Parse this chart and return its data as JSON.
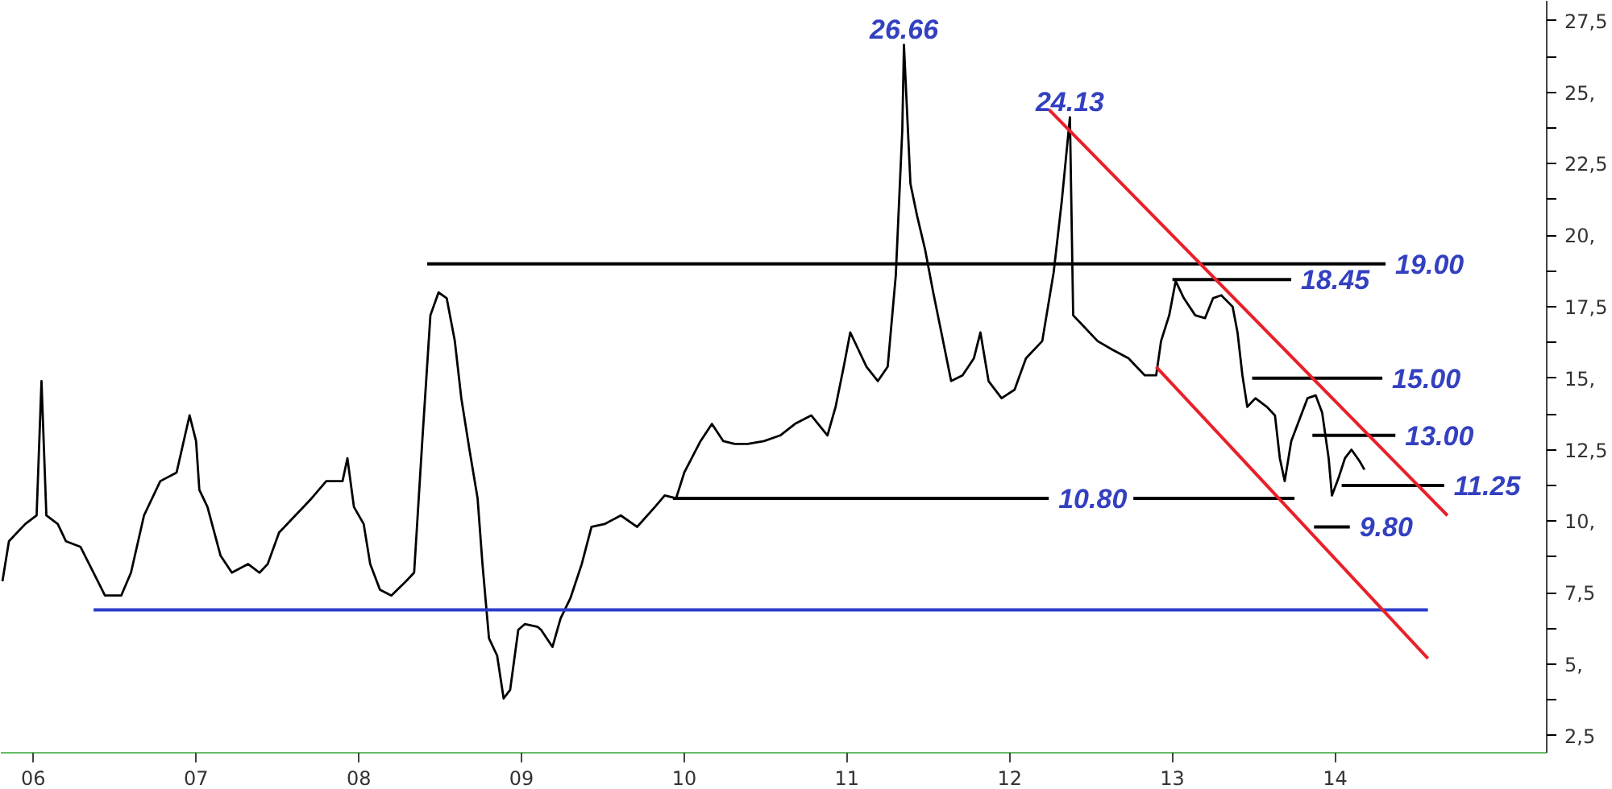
{
  "chart_data": {
    "type": "line",
    "xlim": [
      2005.8,
      2015.3
    ],
    "ylim": [
      1.9,
      28.2
    ],
    "xticks": [
      {
        "value": 2006,
        "label": "06"
      },
      {
        "value": 2007,
        "label": "07"
      },
      {
        "value": 2008,
        "label": "08"
      },
      {
        "value": 2009,
        "label": "09"
      },
      {
        "value": 2010,
        "label": "10"
      },
      {
        "value": 2011,
        "label": "11"
      },
      {
        "value": 2012,
        "label": "12"
      },
      {
        "value": 2013,
        "label": "13"
      },
      {
        "value": 2014,
        "label": "14"
      }
    ],
    "yticks": [
      {
        "value": 2.5,
        "label": "2,5"
      },
      {
        "value": 3.75,
        "label": null
      },
      {
        "value": 5,
        "label": "5,"
      },
      {
        "value": 6.25,
        "label": null
      },
      {
        "value": 7.5,
        "label": "7,5"
      },
      {
        "value": 8.75,
        "label": null
      },
      {
        "value": 10,
        "label": "10,"
      },
      {
        "value": 11.25,
        "label": null
      },
      {
        "value": 12.5,
        "label": "12,5"
      },
      {
        "value": 13.75,
        "label": null
      },
      {
        "value": 15,
        "label": "15,"
      },
      {
        "value": 16.25,
        "label": null
      },
      {
        "value": 17.5,
        "label": "17,5"
      },
      {
        "value": 18.75,
        "label": null
      },
      {
        "value": 20,
        "label": "20,"
      },
      {
        "value": 21.25,
        "label": null
      },
      {
        "value": 22.5,
        "label": "22,5"
      },
      {
        "value": 23.75,
        "label": null
      },
      {
        "value": 25,
        "label": "25,"
      },
      {
        "value": 26.25,
        "label": null
      },
      {
        "value": 27.5,
        "label": "27,5"
      }
    ],
    "grid": false,
    "series": [
      {
        "color": "#000000",
        "x": [
          2005.81,
          2005.85,
          2005.95,
          2006.02,
          2006.05,
          2006.08,
          2006.15,
          2006.2,
          2006.29,
          2006.37,
          2006.44,
          2006.54,
          2006.6,
          2006.68,
          2006.78,
          2006.88,
          2006.96,
          2007.0,
          2007.02,
          2007.07,
          2007.15,
          2007.22,
          2007.32,
          2007.39,
          2007.44,
          2007.51,
          2007.61,
          2007.71,
          2007.8,
          2007.9,
          2007.93,
          2007.97,
          2008.03,
          2008.07,
          2008.13,
          2008.2,
          2008.29,
          2008.34,
          2008.39,
          2008.44,
          2008.49,
          2008.54,
          2008.59,
          2008.63,
          2008.68,
          2008.73,
          2008.76,
          2008.8,
          2008.85,
          2008.89,
          2008.93,
          2008.98,
          2009.02,
          2009.1,
          2009.12,
          2009.19,
          2009.24,
          2009.3,
          2009.37,
          2009.43,
          2009.51,
          2009.61,
          2009.71,
          2009.82,
          2009.88,
          2009.95,
          2010.0,
          2010.1,
          2010.17,
          2010.24,
          2010.31,
          2010.39,
          2010.49,
          2010.59,
          2010.68,
          2010.78,
          2010.88,
          2010.93,
          2010.98,
          2011.02,
          2011.07,
          2011.12,
          2011.19,
          2011.25,
          2011.3,
          2011.34,
          2011.35,
          2011.39,
          2011.43,
          2011.48,
          2011.53,
          2011.58,
          2011.64,
          2011.71,
          2011.78,
          2011.82,
          2011.87,
          2011.95,
          2012.03,
          2012.1,
          2012.2,
          2012.27,
          2012.32,
          2012.37,
          2012.39,
          2012.44,
          2012.54,
          2012.63,
          2012.73,
          2012.83,
          2012.9,
          2012.93,
          2012.98,
          2013.02,
          2013.07,
          2013.14,
          2013.2,
          2013.25,
          2013.3,
          2013.37,
          2013.4,
          2013.43,
          2013.46,
          2013.51,
          2013.58,
          2013.63,
          2013.66,
          2013.69,
          2013.73,
          2013.79,
          2013.83,
          2013.88,
          2013.92,
          2013.96,
          2013.98,
          2014.02,
          2014.06,
          2014.1,
          2014.15,
          2014.18
        ],
        "values": [
          7.9,
          9.3,
          9.9,
          10.2,
          14.9,
          10.2,
          9.9,
          9.3,
          9.1,
          8.2,
          7.4,
          7.4,
          8.2,
          10.2,
          11.4,
          11.7,
          13.7,
          12.8,
          11.1,
          10.5,
          8.8,
          8.2,
          8.5,
          8.2,
          8.5,
          9.6,
          10.2,
          10.8,
          11.4,
          11.4,
          12.2,
          10.5,
          9.9,
          8.5,
          7.6,
          7.4,
          7.9,
          8.2,
          12.8,
          17.2,
          18.0,
          17.8,
          16.3,
          14.3,
          12.5,
          10.8,
          8.5,
          5.9,
          5.3,
          3.8,
          4.1,
          6.2,
          6.4,
          6.3,
          6.2,
          5.6,
          6.6,
          7.3,
          8.5,
          9.8,
          9.9,
          10.2,
          9.8,
          10.5,
          10.9,
          10.8,
          11.7,
          12.8,
          13.4,
          12.8,
          12.7,
          12.7,
          12.8,
          13.0,
          13.4,
          13.7,
          13.0,
          14.0,
          15.4,
          16.6,
          16.0,
          15.4,
          14.9,
          15.4,
          18.6,
          23.7,
          26.66,
          21.8,
          20.7,
          19.5,
          18.0,
          16.6,
          14.9,
          15.1,
          15.7,
          16.6,
          14.9,
          14.3,
          14.6,
          15.7,
          16.3,
          18.7,
          21.2,
          24.13,
          17.2,
          16.9,
          16.3,
          16.0,
          15.7,
          15.1,
          15.1,
          16.3,
          17.2,
          18.4,
          17.8,
          17.2,
          17.1,
          17.8,
          17.9,
          17.5,
          16.6,
          15.1,
          14.0,
          14.3,
          14.0,
          13.7,
          12.2,
          11.4,
          12.8,
          13.7,
          14.3,
          14.4,
          13.8,
          12.2,
          10.9,
          11.5,
          12.2,
          12.5,
          12.1,
          11.8
        ]
      },
      {
        "color": "#000000",
        "x": [
          2008.42,
          2014.31
        ],
        "values": [
          19.0,
          19.0
        ]
      },
      {
        "color": "#000000",
        "x": [
          2013.0,
          2013.73
        ],
        "values": [
          18.45,
          18.45
        ]
      },
      {
        "color": "#000000",
        "x": [
          2013.49,
          2014.29
        ],
        "values": [
          15.0,
          15.0
        ]
      },
      {
        "color": "#000000",
        "x": [
          2013.86,
          2014.37
        ],
        "values": [
          13.0,
          13.0
        ]
      },
      {
        "color": "#000000",
        "x": [
          2014.04,
          2014.67
        ],
        "values": [
          11.25,
          11.25
        ]
      },
      {
        "color": "#000000",
        "x": [
          2009.93,
          2012.24,
          2012.5,
          2012.76,
          2013.75
        ],
        "values": [
          10.8,
          10.8,
          null,
          10.8,
          10.8
        ]
      },
      {
        "color": "#000000",
        "x": [
          2013.87,
          2014.09
        ],
        "values": [
          9.8,
          9.8
        ]
      },
      {
        "color": "#2b3bcc",
        "x": [
          2006.37,
          2014.57
        ],
        "values": [
          6.9,
          6.9
        ]
      },
      {
        "color": "#e8202a",
        "x": [
          2012.24,
          2014.69
        ],
        "values": [
          24.4,
          10.2
        ]
      },
      {
        "color": "#e8202a",
        "x": [
          2012.9,
          2014.57
        ],
        "values": [
          15.4,
          5.2
        ]
      }
    ],
    "annotations": [
      {
        "text": "26.66",
        "x": 2011.35,
        "y": 26.66
      },
      {
        "text": "24.13",
        "x": 2012.37,
        "y": 24.13
      },
      {
        "text": "19.00",
        "x": 2014.31,
        "y": 19.0
      },
      {
        "text": "18.45",
        "x": 2013.73,
        "y": 18.45
      },
      {
        "text": "15.00",
        "x": 2014.29,
        "y": 15.0
      },
      {
        "text": "13.00",
        "x": 2014.37,
        "y": 13.0
      },
      {
        "text": "11.25",
        "x": 2014.67,
        "y": 11.25
      },
      {
        "text": "10.80",
        "x": 2012.24,
        "y": 10.8
      },
      {
        "text": "9.80",
        "x": 2014.09,
        "y": 9.8
      }
    ]
  }
}
